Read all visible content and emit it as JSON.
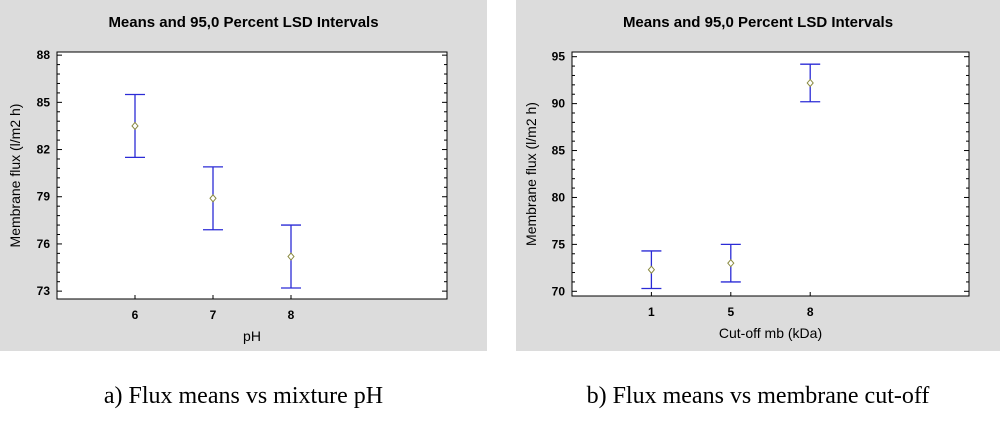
{
  "chart_data": [
    {
      "type": "scatter",
      "title": "Means and 95,0 Percent LSD Intervals",
      "xlabel": "pH",
      "ylabel": "Membrane flux (l/m2 h)",
      "categories": [
        "6",
        "7",
        "8"
      ],
      "means": [
        83.5,
        78.9,
        75.2
      ],
      "lower": [
        81.5,
        76.9,
        73.2
      ],
      "upper": [
        85.5,
        80.9,
        77.2
      ],
      "ylim": [
        72.5,
        88.2
      ],
      "yticks": [
        73,
        76,
        79,
        82,
        85,
        88
      ],
      "caption": "a) Flux means vs mixture pH"
    },
    {
      "type": "scatter",
      "title": "Means and 95,0 Percent LSD Intervals",
      "xlabel": "Cut-off mb (kDa)",
      "ylabel": "Membrane flux (l/m2 h)",
      "categories": [
        "1",
        "5",
        "8"
      ],
      "means": [
        72.3,
        73.0,
        92.2
      ],
      "lower": [
        70.3,
        71.0,
        90.2
      ],
      "upper": [
        74.3,
        75.0,
        94.2
      ],
      "ylim": [
        69.5,
        95.5
      ],
      "yticks": [
        70,
        75,
        80,
        85,
        90,
        95
      ],
      "caption": "b) Flux means vs membrane cut-off"
    }
  ],
  "colors": {
    "interval": "#2b2bd6",
    "mean_marker": "#8a8a40",
    "panel_bg": "#dcdcdc"
  }
}
